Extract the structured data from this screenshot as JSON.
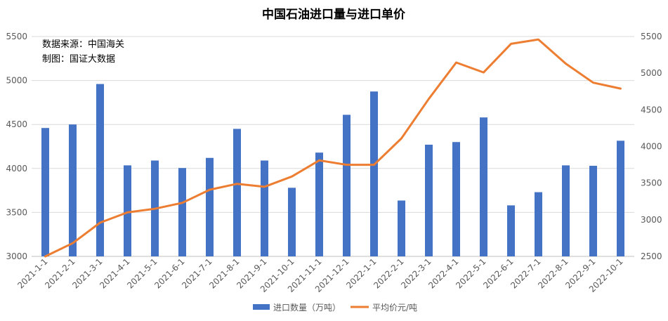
{
  "chart_data": {
    "type": "bar+line",
    "title": "中国石油进口量与进口单价",
    "annotations": [
      "数据来源：中国海关",
      "制图：国证大数据"
    ],
    "categories": [
      "2021-1-1",
      "2021-2-1",
      "2021-3-1",
      "2021-4-1",
      "2021-5-1",
      "2021-6-1",
      "2021-7-1",
      "2021-8-1",
      "2021-9-1",
      "2021-10-1",
      "2021-11-1",
      "2021-12-1",
      "2022-1-1",
      "2022-2-1",
      "2022-3-1",
      "2022-4-1",
      "2022-5-1",
      "2022-6-1",
      "2022-7-1",
      "2022-8-1",
      "2022-9-1",
      "2022-10-1"
    ],
    "series": [
      {
        "name": "进口数量（万吨）",
        "type": "bar",
        "axis": "left",
        "color": "#4472C4",
        "values": [
          4460,
          4500,
          4960,
          4035,
          4090,
          4005,
          4120,
          4450,
          4090,
          3780,
          4180,
          4610,
          4875,
          3635,
          4270,
          4300,
          4580,
          3580,
          3730,
          4035,
          4030,
          4315
        ]
      },
      {
        "name": "平均价元/吨",
        "type": "line",
        "axis": "right",
        "color": "#ED7D31",
        "values": [
          2500,
          2680,
          2960,
          3100,
          3150,
          3230,
          3410,
          3490,
          3450,
          3590,
          3810,
          3750,
          3750,
          4110,
          4650,
          5145,
          5010,
          5400,
          5460,
          5130,
          4870,
          4790
        ]
      }
    ],
    "y_left": {
      "min": 3000,
      "max": 5500,
      "ticks": [
        3000,
        3500,
        4000,
        4500,
        5000,
        5500
      ]
    },
    "y_right": {
      "min": 2500,
      "max": 5500,
      "ticks": [
        2500,
        3000,
        3500,
        4000,
        4500,
        5000,
        5500
      ]
    },
    "grid": true,
    "legend_position": "bottom"
  }
}
